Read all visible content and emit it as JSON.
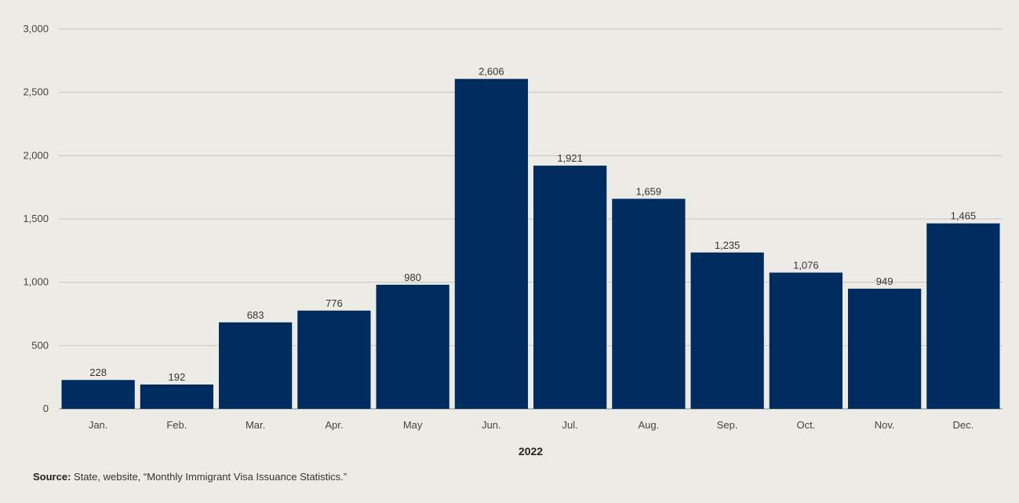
{
  "chart_data": {
    "type": "bar",
    "categories": [
      "Jan.",
      "Feb.",
      "Mar.",
      "Apr.",
      "May",
      "Jun.",
      "Jul.",
      "Aug.",
      "Sep.",
      "Oct.",
      "Nov.",
      "Dec."
    ],
    "values": [
      228,
      192,
      683,
      776,
      980,
      2606,
      1921,
      1659,
      1235,
      1076,
      949,
      1465
    ],
    "data_labels": [
      "228",
      "192",
      "683",
      "776",
      "980",
      "2,606",
      "1,921",
      "1,659",
      "1,235",
      "1,076",
      "949",
      "1,465"
    ],
    "yticks": [
      0,
      500,
      1000,
      1500,
      2000,
      2500,
      3000
    ],
    "ytick_labels": [
      "0",
      "500",
      "1,000",
      "1,500",
      "2,000",
      "2,500",
      "3,000"
    ],
    "ylim": [
      0,
      3000
    ],
    "xlabel": "2022",
    "ylabel": "",
    "title": "",
    "grid": true,
    "bar_color": "#002b5f",
    "grid_color": "#c8c6c0"
  },
  "source": {
    "label": "Source:",
    "text": " State, website, “Monthly Immigrant Visa Issuance Statistics.”"
  }
}
